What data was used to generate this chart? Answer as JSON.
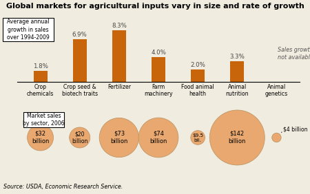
{
  "title": "Global markets for agricultural inputs vary in size and rate of growth",
  "categories": [
    "Crop\nchemicals",
    "Crop seed &\nbiotech traits",
    "Fertilizer",
    "Farm\nmachinery",
    "Food animal\nhealth",
    "Animal\nnutrition",
    "Animal\ngenetics"
  ],
  "growth_rates": [
    1.8,
    6.9,
    8.3,
    4.0,
    2.0,
    3.3,
    null
  ],
  "growth_labels": [
    "1.8%",
    "6.9%",
    "8.3%",
    "4.0%",
    "2.0%",
    "3.3%",
    "Sales growth\nnot available"
  ],
  "market_sales": [
    32,
    20,
    73,
    74,
    9.5,
    142,
    4
  ],
  "market_labels": [
    "$32\nbillion",
    "$20\nbillion",
    "$73\nbillion",
    "$74\nbillion",
    "$9.5\nbil.",
    "$142\nbillion",
    "$4 billion"
  ],
  "bar_color": "#C8640A",
  "circle_color": "#E8A870",
  "circle_edge_color": "#B89060",
  "background_color": "#F0ECE0",
  "bar_max": 8.3,
  "source_text": "Source: USDA, Economic Research Service.",
  "legend_bar_text": "Average annual\ngrowth in sales\nover 1994-2009",
  "legend_circle_text": "Market sales\nby sector, 2006"
}
